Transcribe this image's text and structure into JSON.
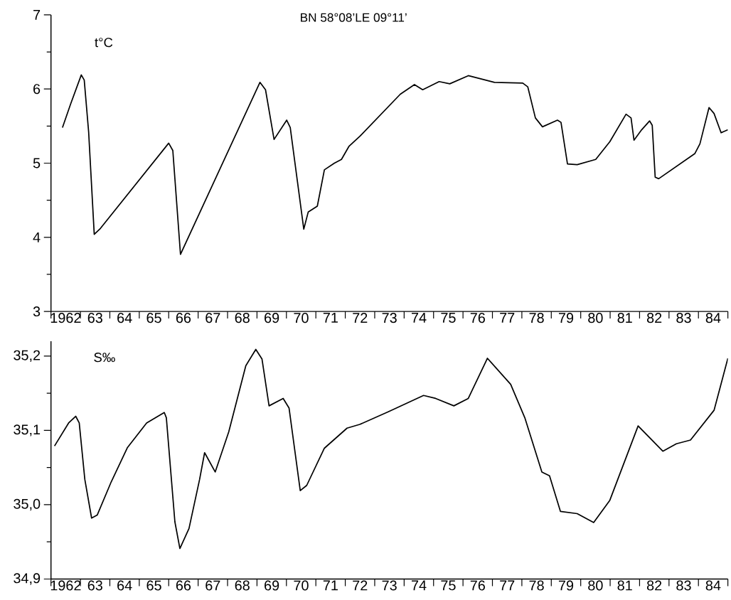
{
  "chart_data": [
    {
      "type": "line",
      "title": "BN 58°08’LE 09°11’",
      "ylabel": "t°C",
      "color": "#000000",
      "x": [
        1961.89,
        1962.17,
        1962.53,
        1962.63,
        1962.78,
        1962.97,
        1963.18,
        1965.5,
        1965.64,
        1965.9,
        1968.6,
        1968.79,
        1969.08,
        1969.51,
        1969.63,
        1970.09,
        1970.24,
        1970.55,
        1970.79,
        1971.13,
        1971.37,
        1971.63,
        1971.99,
        1973.37,
        1973.85,
        1974.13,
        1974.69,
        1975.05,
        1975.68,
        1976.57,
        1977.53,
        1977.7,
        1977.96,
        1978.2,
        1978.71,
        1978.83,
        1979.05,
        1979.38,
        1980.01,
        1980.49,
        1981.04,
        1981.21,
        1981.31,
        1981.57,
        1981.84,
        1981.93,
        1982.03,
        1982.15,
        1983.38,
        1983.55,
        1983.86,
        1984.03,
        1984.27,
        1984.5
      ],
      "values": [
        5.48,
        5.8,
        6.19,
        6.12,
        5.42,
        4.04,
        4.12,
        5.27,
        5.17,
        3.77,
        6.09,
        5.99,
        5.32,
        5.58,
        5.48,
        4.11,
        4.34,
        4.42,
        4.91,
        5.0,
        5.05,
        5.23,
        5.36,
        5.93,
        6.06,
        5.99,
        6.1,
        6.07,
        6.18,
        6.09,
        6.08,
        6.03,
        5.61,
        5.49,
        5.58,
        5.55,
        4.99,
        4.98,
        5.05,
        5.29,
        5.66,
        5.61,
        5.31,
        5.45,
        5.57,
        5.51,
        4.81,
        4.79,
        5.13,
        5.26,
        5.75,
        5.67,
        5.41,
        5.45
      ],
      "xlim": [
        1961.5,
        1984.5
      ],
      "xticks": [
        {
          "value": 1962,
          "label": "1962"
        },
        {
          "value": 1963,
          "label": "63"
        },
        {
          "value": 1964,
          "label": "64"
        },
        {
          "value": 1965,
          "label": "65"
        },
        {
          "value": 1966,
          "label": "66"
        },
        {
          "value": 1967,
          "label": "67"
        },
        {
          "value": 1968,
          "label": "68"
        },
        {
          "value": 1969,
          "label": "69"
        },
        {
          "value": 1970,
          "label": "70"
        },
        {
          "value": 1971,
          "label": "71"
        },
        {
          "value": 1972,
          "label": "72"
        },
        {
          "value": 1973,
          "label": "73"
        },
        {
          "value": 1974,
          "label": "74"
        },
        {
          "value": 1975,
          "label": "75"
        },
        {
          "value": 1976,
          "label": "76"
        },
        {
          "value": 1977,
          "label": "77"
        },
        {
          "value": 1978,
          "label": "78"
        },
        {
          "value": 1979,
          "label": "79"
        },
        {
          "value": 1980,
          "label": "80"
        },
        {
          "value": 1981,
          "label": "81"
        },
        {
          "value": 1982,
          "label": "82"
        },
        {
          "value": 1983,
          "label": "83"
        },
        {
          "value": 1984,
          "label": "84"
        },
        {
          "value": 1961.5,
          "label": null
        },
        {
          "value": 1962.5,
          "label": null
        },
        {
          "value": 1963.5,
          "label": null
        },
        {
          "value": 1964.5,
          "label": null
        },
        {
          "value": 1965.5,
          "label": null
        },
        {
          "value": 1966.5,
          "label": null
        },
        {
          "value": 1967.5,
          "label": null
        },
        {
          "value": 1968.5,
          "label": null
        },
        {
          "value": 1969.5,
          "label": null
        },
        {
          "value": 1970.5,
          "label": null
        },
        {
          "value": 1971.5,
          "label": null
        },
        {
          "value": 1972.5,
          "label": null
        },
        {
          "value": 1973.5,
          "label": null
        },
        {
          "value": 1974.5,
          "label": null
        },
        {
          "value": 1975.5,
          "label": null
        },
        {
          "value": 1976.5,
          "label": null
        },
        {
          "value": 1977.5,
          "label": null
        },
        {
          "value": 1978.5,
          "label": null
        },
        {
          "value": 1979.5,
          "label": null
        },
        {
          "value": 1980.5,
          "label": null
        },
        {
          "value": 1981.5,
          "label": null
        },
        {
          "value": 1982.5,
          "label": null
        },
        {
          "value": 1983.5,
          "label": null
        },
        {
          "value": 1984.5,
          "label": null
        }
      ],
      "ylim": [
        3,
        7
      ],
      "yticks": [
        3,
        4,
        5,
        6,
        7,
        {
          "value": 3.5,
          "label": null
        },
        {
          "value": 4.5,
          "label": null
        },
        {
          "value": 5.5,
          "label": null
        },
        {
          "value": 6.5,
          "label": null
        }
      ]
    },
    {
      "type": "line",
      "ylabel": "S‰",
      "color": "#000000",
      "x": [
        1961.62,
        1962.1,
        1962.34,
        1962.46,
        1962.65,
        1962.88,
        1963.07,
        1963.55,
        1964.1,
        1964.75,
        1965.35,
        1965.42,
        1965.71,
        1965.88,
        1966.19,
        1966.55,
        1966.72,
        1967.08,
        1967.54,
        1968.12,
        1968.46,
        1968.67,
        1968.91,
        1969.39,
        1969.59,
        1969.97,
        1970.19,
        1970.79,
        1971.56,
        1971.99,
        1972.96,
        1974.16,
        1974.57,
        1975.19,
        1975.68,
        1976.33,
        1977.12,
        1977.6,
        1978.18,
        1978.44,
        1978.81,
        1979.38,
        1979.94,
        1980.49,
        1981.45,
        1982.29,
        1982.75,
        1983.23,
        1984.03,
        1984.5
      ],
      "values": [
        35.079,
        35.11,
        35.119,
        35.11,
        35.034,
        34.982,
        34.986,
        35.031,
        35.077,
        35.11,
        35.124,
        35.117,
        34.977,
        34.941,
        34.968,
        35.034,
        35.07,
        35.044,
        35.098,
        35.187,
        35.209,
        35.196,
        35.133,
        35.143,
        35.13,
        35.019,
        35.026,
        35.076,
        35.103,
        35.108,
        35.125,
        35.147,
        35.143,
        35.133,
        35.143,
        35.197,
        35.162,
        35.117,
        35.044,
        35.039,
        34.991,
        34.988,
        34.976,
        35.006,
        35.106,
        35.072,
        35.082,
        35.087,
        35.127,
        35.197
      ],
      "xlim": [
        1961.5,
        1984.5
      ],
      "xticks": [
        {
          "value": 1962,
          "label": "1962"
        },
        {
          "value": 1963,
          "label": "63"
        },
        {
          "value": 1964,
          "label": "64"
        },
        {
          "value": 1965,
          "label": "65"
        },
        {
          "value": 1966,
          "label": "66"
        },
        {
          "value": 1967,
          "label": "67"
        },
        {
          "value": 1968,
          "label": "68"
        },
        {
          "value": 1969,
          "label": "69"
        },
        {
          "value": 1970,
          "label": "70"
        },
        {
          "value": 1971,
          "label": "71"
        },
        {
          "value": 1972,
          "label": "72"
        },
        {
          "value": 1973,
          "label": "73"
        },
        {
          "value": 1974,
          "label": "74"
        },
        {
          "value": 1975,
          "label": "75"
        },
        {
          "value": 1976,
          "label": "76"
        },
        {
          "value": 1977,
          "label": "77"
        },
        {
          "value": 1978,
          "label": "78"
        },
        {
          "value": 1979,
          "label": "79"
        },
        {
          "value": 1980,
          "label": "80"
        },
        {
          "value": 1981,
          "label": "81"
        },
        {
          "value": 1982,
          "label": "82"
        },
        {
          "value": 1983,
          "label": "83"
        },
        {
          "value": 1984,
          "label": "84"
        },
        {
          "value": 1961.5,
          "label": null
        },
        {
          "value": 1962.5,
          "label": null
        },
        {
          "value": 1963.5,
          "label": null
        },
        {
          "value": 1964.5,
          "label": null
        },
        {
          "value": 1965.5,
          "label": null
        },
        {
          "value": 1966.5,
          "label": null
        },
        {
          "value": 1967.5,
          "label": null
        },
        {
          "value": 1968.5,
          "label": null
        },
        {
          "value": 1969.5,
          "label": null
        },
        {
          "value": 1970.5,
          "label": null
        },
        {
          "value": 1971.5,
          "label": null
        },
        {
          "value": 1972.5,
          "label": null
        },
        {
          "value": 1973.5,
          "label": null
        },
        {
          "value": 1974.5,
          "label": null
        },
        {
          "value": 1975.5,
          "label": null
        },
        {
          "value": 1976.5,
          "label": null
        },
        {
          "value": 1977.5,
          "label": null
        },
        {
          "value": 1978.5,
          "label": null
        },
        {
          "value": 1979.5,
          "label": null
        },
        {
          "value": 1980.5,
          "label": null
        },
        {
          "value": 1981.5,
          "label": null
        },
        {
          "value": 1982.5,
          "label": null
        },
        {
          "value": 1983.5,
          "label": null
        },
        {
          "value": 1984.5,
          "label": null
        }
      ],
      "ylim": [
        34.9,
        35.22
      ],
      "yticks": [
        {
          "value": 34.9,
          "label": "34,9"
        },
        {
          "value": 35.0,
          "label": "35,0"
        },
        {
          "value": 35.1,
          "label": "35,1"
        },
        {
          "value": 35.2,
          "label": "35,2"
        },
        {
          "value": 34.95,
          "label": null
        },
        {
          "value": 35.05,
          "label": null
        },
        {
          "value": 35.15,
          "label": null
        }
      ]
    }
  ]
}
